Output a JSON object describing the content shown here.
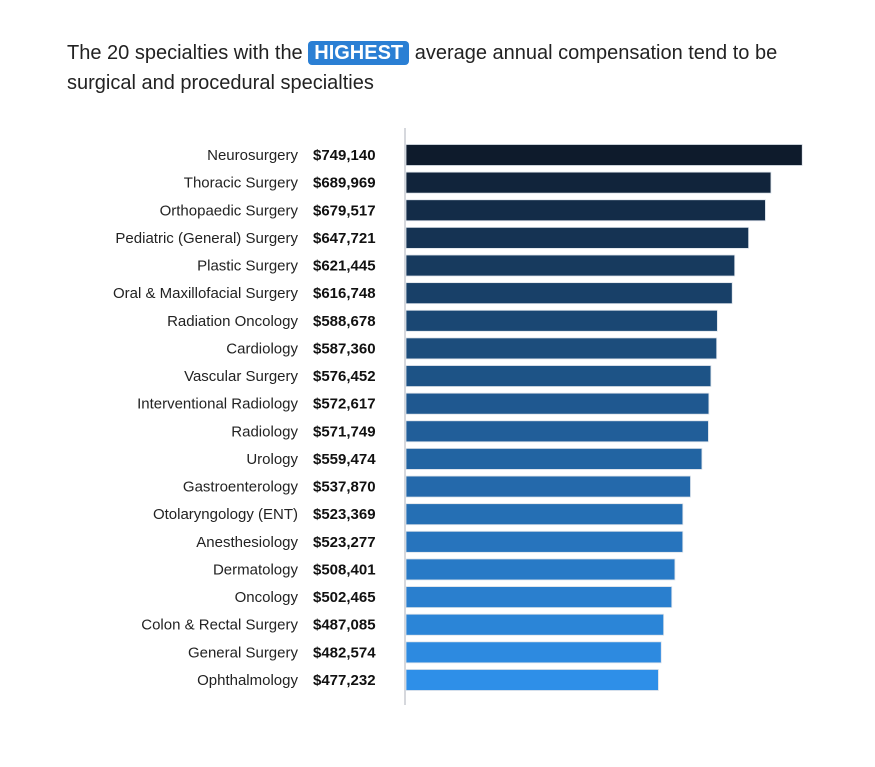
{
  "chart_data": {
    "type": "bar",
    "orientation": "horizontal",
    "title": {
      "before": "The 20 specialties with the",
      "highlight": "HIGHEST",
      "after": "average annual compensation tend to be surgical and procedural specialties"
    },
    "categories": [
      "Neurosurgery",
      "Thoracic Surgery",
      "Orthopaedic Surgery",
      "Pediatric (General) Surgery",
      "Plastic Surgery",
      "Oral & Maxillofacial Surgery",
      "Radiation Oncology",
      "Cardiology",
      "Vascular Surgery",
      "Interventional Radiology",
      "Radiology",
      "Urology",
      "Gastroenterology",
      "Otolaryngology (ENT)",
      "Anesthesiology",
      "Dermatology",
      "Oncology",
      "Colon & Rectal Surgery",
      "General Surgery",
      "Ophthalmology"
    ],
    "values": [
      749140,
      689969,
      679517,
      647721,
      621445,
      616748,
      588678,
      587360,
      576452,
      572617,
      571749,
      559474,
      537870,
      523369,
      523277,
      508401,
      502465,
      487085,
      482574,
      477232
    ],
    "value_labels": [
      "$749,140",
      "$689,969",
      "$679,517",
      "$647,721",
      "$621,445",
      "$616,748",
      "$588,678",
      "$587,360",
      "$576,452",
      "$572,617",
      "$571,749",
      "$559,474",
      "$537,870",
      "$523,369",
      "$523,277",
      "$508,401",
      "$502,465",
      "$487,085",
      "$482,574",
      "$477,232"
    ],
    "xlim": [
      0,
      760000
    ],
    "grid": false,
    "colors": {
      "darkest": "#0e1b2c",
      "lightest": "#2e8fe8",
      "highlight": "#2a7fd4"
    }
  }
}
